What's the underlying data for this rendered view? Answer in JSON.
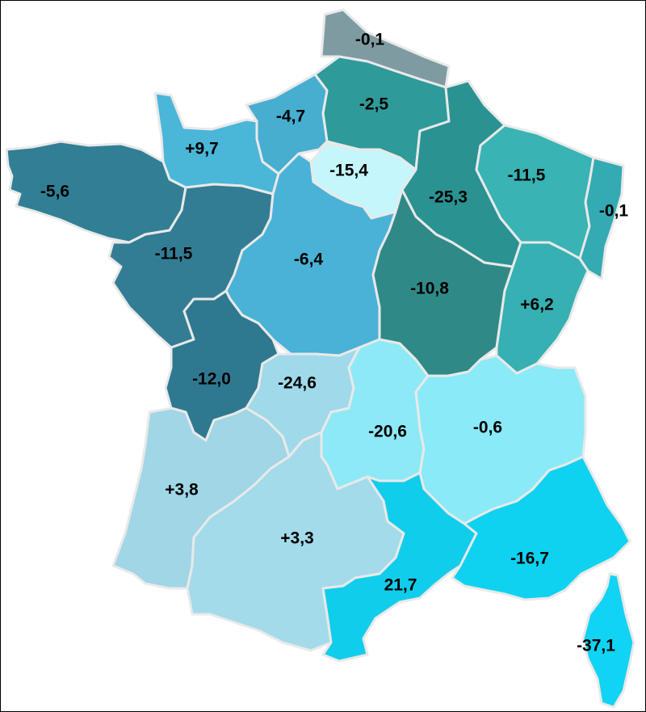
{
  "map": {
    "regions": [
      {
        "id": "nord-pas-de-calais",
        "value": "-0,1",
        "color": "#7f9ba2"
      },
      {
        "id": "picardie",
        "value": "-2,5",
        "color": "#2f9a9a"
      },
      {
        "id": "haute-normandie",
        "value": "-4,7",
        "color": "#47aed0"
      },
      {
        "id": "basse-normandie",
        "value": "+9,7",
        "color": "#4ab6d8"
      },
      {
        "id": "ile-de-france",
        "value": "-15,4",
        "color": "#c4f6fb"
      },
      {
        "id": "champagne-ardenne",
        "value": "-25,3",
        "color": "#2b9292"
      },
      {
        "id": "lorraine",
        "value": "-11,5",
        "color": "#39b3b3"
      },
      {
        "id": "alsace",
        "value": "-0,1",
        "color": "#34aab2"
      },
      {
        "id": "bretagne",
        "value": "-5,6",
        "color": "#317f95"
      },
      {
        "id": "pays-de-la-loire",
        "value": "-11,5",
        "color": "#337d94"
      },
      {
        "id": "centre",
        "value": "-6,4",
        "color": "#4ab2d6"
      },
      {
        "id": "bourgogne",
        "value": "-10,8",
        "color": "#2f8a87"
      },
      {
        "id": "franche-comte",
        "value": "+6,2",
        "color": "#36b0b2"
      },
      {
        "id": "poitou-charentes",
        "value": "-12,0",
        "color": "#2f7990"
      },
      {
        "id": "limousin",
        "value": "-24,6",
        "color": "#9fd9ea"
      },
      {
        "id": "auvergne",
        "value": "-20,6",
        "color": "#8ee9f6"
      },
      {
        "id": "rhone-alpes",
        "value": "-0,6",
        "color": "#8aeaf8"
      },
      {
        "id": "aquitaine",
        "value": "+3,8",
        "color": "#a0d6e6"
      },
      {
        "id": "midi-pyrenees",
        "value": "+3,3",
        "color": "#a3dbeb"
      },
      {
        "id": "languedoc-roussillon",
        "value": "21,7",
        "color": "#11cdec"
      },
      {
        "id": "provence-alpes-cote-dazur",
        "value": "-16,7",
        "color": "#0fd2f1"
      },
      {
        "id": "corse",
        "value": "-37,1",
        "color": "#11d3f3"
      }
    ]
  }
}
